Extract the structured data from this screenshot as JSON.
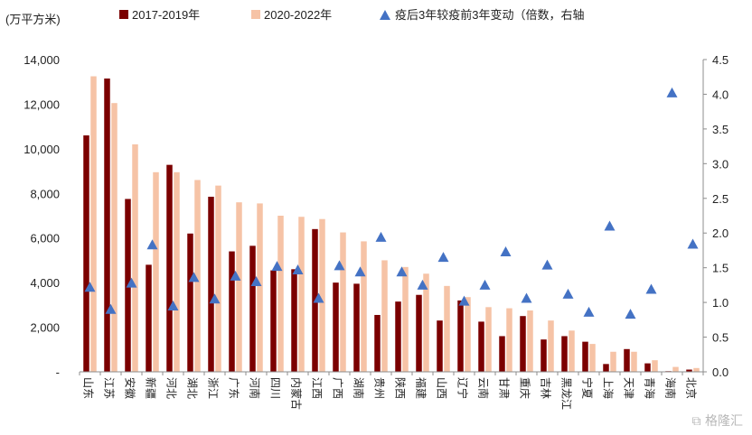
{
  "chart_data": {
    "type": "bar",
    "unit_label": "(万平方米)",
    "categories": [
      "山东",
      "江苏",
      "安徽",
      "新疆",
      "河北",
      "湖北",
      "浙江",
      "广东",
      "河南",
      "四川",
      "内蒙古",
      "江西",
      "广西",
      "湖南",
      "贵州",
      "陕西",
      "福建",
      "山西",
      "辽宁",
      "云南",
      "甘肃",
      "重庆",
      "吉林",
      "黑龙江",
      "宁夏",
      "上海",
      "天津",
      "青海",
      "海南",
      "北京"
    ],
    "series": [
      {
        "name": "2017-2019年",
        "kind": "bar",
        "axis": "left",
        "color": "#7b0000",
        "values": [
          10600,
          13150,
          7750,
          4800,
          9280,
          6200,
          7850,
          5400,
          5650,
          4550,
          4600,
          6400,
          4000,
          3950,
          2550,
          3150,
          3450,
          2300,
          3200,
          2250,
          1600,
          2500,
          1450,
          1600,
          1350,
          350,
          1020,
          380,
          30,
          100
        ]
      },
      {
        "name": "2020-2022年",
        "kind": "bar",
        "axis": "left",
        "color": "#f6c3a6",
        "values": [
          13250,
          12050,
          10200,
          8950,
          8950,
          8600,
          8350,
          7600,
          7550,
          7000,
          6950,
          6850,
          6250,
          5850,
          5000,
          4700,
          4400,
          3850,
          3350,
          2900,
          2850,
          2750,
          2300,
          1850,
          1250,
          900,
          900,
          520,
          220,
          170
        ]
      },
      {
        "name": "疫后3年较疫前3年变动（倍数，右轴",
        "kind": "marker",
        "axis": "right",
        "color": "#4472c4",
        "values": [
          1.22,
          0.9,
          1.28,
          1.83,
          0.95,
          1.36,
          1.05,
          1.38,
          1.3,
          1.52,
          1.47,
          1.06,
          1.53,
          1.44,
          1.94,
          1.44,
          1.25,
          1.65,
          1.02,
          1.25,
          1.73,
          1.06,
          1.54,
          1.12,
          0.86,
          2.1,
          0.83,
          1.19,
          4.02,
          1.84
        ]
      }
    ],
    "y_left": {
      "min": 0,
      "max": 14000,
      "ticks": [
        "-",
        "2,000",
        "4,000",
        "6,000",
        "8,000",
        "10,000",
        "12,000",
        "14,000"
      ]
    },
    "y_right": {
      "min": 0,
      "max": 4.5,
      "ticks": [
        "0.0",
        "0.5",
        "1.0",
        "1.5",
        "2.0",
        "2.5",
        "3.0",
        "3.5",
        "4.0",
        "4.5"
      ]
    },
    "grid": false,
    "legend_position": "top"
  },
  "watermark": "格隆汇"
}
